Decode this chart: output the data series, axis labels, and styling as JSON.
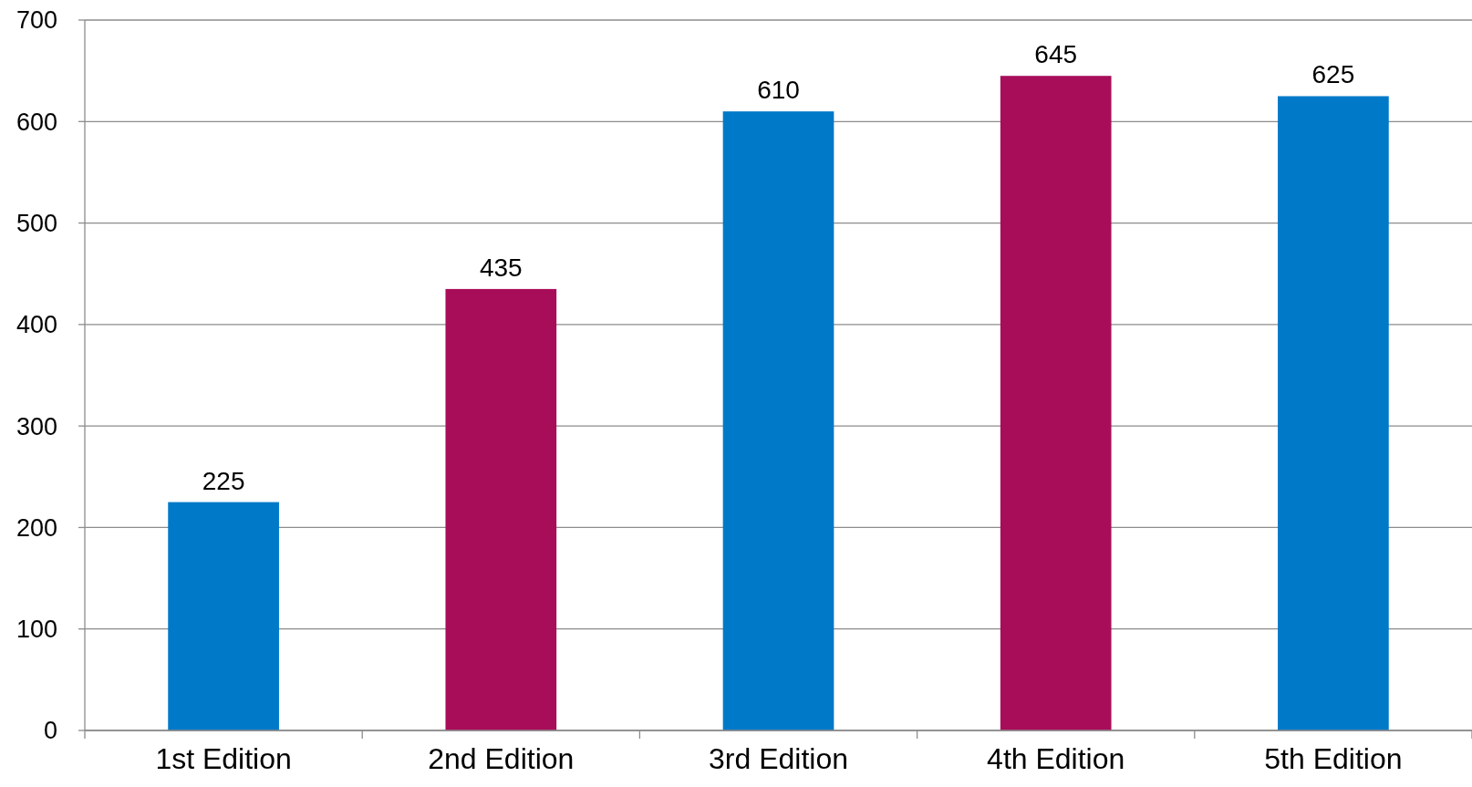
{
  "chart_data": {
    "type": "bar",
    "categories": [
      "1st Edition",
      "2nd Edition",
      "3rd Edition",
      "4th Edition",
      "5th Edition"
    ],
    "values": [
      225,
      435,
      610,
      645,
      625
    ],
    "colors": [
      "#0079c8",
      "#a80d5a",
      "#0079c8",
      "#a80d5a",
      "#0079c8"
    ],
    "ylim": [
      0,
      700
    ],
    "yticks": [
      0,
      100,
      200,
      300,
      400,
      500,
      600,
      700
    ],
    "grid": "y",
    "data_labels": true
  }
}
